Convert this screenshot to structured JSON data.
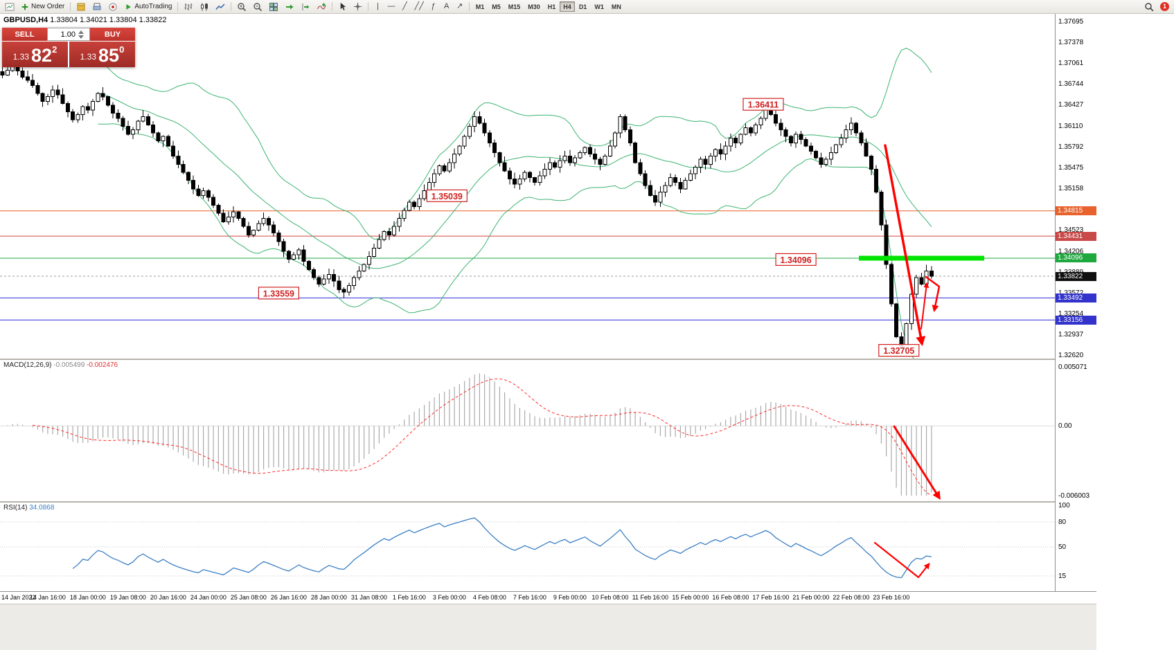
{
  "window": {
    "app_title": "GBPUSD,H4"
  },
  "toolbar": {
    "new_order_label": "New Order",
    "autotrading_label": "AutoTrading",
    "timeframes": [
      "M1",
      "M5",
      "M15",
      "M30",
      "H1",
      "H4",
      "D1",
      "W1",
      "MN"
    ],
    "active_timeframe": "H4",
    "notification_count": "1",
    "glyphs": {
      "vertical_line": "|",
      "horizontal_line": "―",
      "trendline": "╱",
      "channel": "╱╱",
      "fibonacci": "ƒ",
      "text_tool": "A",
      "arrows_tool": "↗"
    }
  },
  "trade_panel": {
    "sell_label": "SELL",
    "buy_label": "BUY",
    "volume": "1.00",
    "sell_price": {
      "prefix": "1.33",
      "big": "82",
      "sup": "2"
    },
    "buy_price": {
      "prefix": "1.33",
      "big": "85",
      "sup": "0"
    }
  },
  "chart": {
    "symbol_title": "GBPUSD,H4",
    "ohlc": "1.33804 1.34021 1.33804 1.33822"
  },
  "chart_data": {
    "type": "candlestick",
    "symbol": "GBPUSD",
    "timeframe": "H4",
    "price_axis": {
      "min": 1.3257,
      "max": 1.3781,
      "ticks": [
        "1.37695",
        "1.37378",
        "1.37061",
        "1.36744",
        "1.36427",
        "1.36110",
        "1.35792",
        "1.35475",
        "1.35158",
        "1.34841",
        "1.34523",
        "1.34206",
        "1.33889",
        "1.33572",
        "1.33254",
        "1.32937",
        "1.32620"
      ]
    },
    "closes": [
      1.3688,
      1.3695,
      1.3702,
      1.3694,
      1.3685,
      1.368,
      1.3672,
      1.366,
      1.3648,
      1.3655,
      1.3665,
      1.3658,
      1.3645,
      1.3632,
      1.362,
      1.3628,
      1.364,
      1.3635,
      1.3648,
      1.366,
      1.3655,
      1.3642,
      1.363,
      1.3622,
      1.361,
      1.3598,
      1.3605,
      1.3618,
      1.3625,
      1.3612,
      1.36,
      1.3588,
      1.3595,
      1.358,
      1.3565,
      1.3552,
      1.354,
      1.3528,
      1.3515,
      1.3505,
      1.3512,
      1.3502,
      1.349,
      1.3478,
      1.3465,
      1.3472,
      1.348,
      1.347,
      1.3458,
      1.3445,
      1.3452,
      1.3462,
      1.347,
      1.346,
      1.3448,
      1.3435,
      1.342,
      1.3408,
      1.3415,
      1.3422,
      1.3405,
      1.3392,
      1.338,
      1.337,
      1.3378,
      1.3385,
      1.3375,
      1.3362,
      1.3358,
      1.3368,
      1.338,
      1.339,
      1.34,
      1.3412,
      1.3425,
      1.3438,
      1.345,
      1.3445,
      1.3458,
      1.347,
      1.3482,
      1.3495,
      1.3488,
      1.35,
      1.3512,
      1.3525,
      1.3538,
      1.355,
      1.3542,
      1.3555,
      1.3568,
      1.358,
      1.3595,
      1.361,
      1.3625,
      1.3615,
      1.36,
      1.3585,
      1.357,
      1.3555,
      1.3542,
      1.353,
      1.3522,
      1.353,
      1.354,
      1.3532,
      1.3525,
      1.3535,
      1.3545,
      1.3555,
      1.3548,
      1.3558,
      1.3565,
      1.3555,
      1.3562,
      1.357,
      1.3578,
      1.3568,
      1.356,
      1.3552,
      1.3565,
      1.358,
      1.36,
      1.3625,
      1.3605,
      1.3585,
      1.3555,
      1.3538,
      1.352,
      1.3505,
      1.3495,
      1.351,
      1.352,
      1.3532,
      1.3525,
      1.3515,
      1.3528,
      1.3538,
      1.3548,
      1.356,
      1.3552,
      1.3565,
      1.3575,
      1.3568,
      1.358,
      1.3592,
      1.3585,
      1.3598,
      1.3608,
      1.36,
      1.3612,
      1.3622,
      1.3635,
      1.3628,
      1.3615,
      1.3605,
      1.3595,
      1.3585,
      1.3598,
      1.359,
      1.358,
      1.3572,
      1.3562,
      1.3552,
      1.356,
      1.357,
      1.3582,
      1.3592,
      1.3605,
      1.3615,
      1.36,
      1.3585,
      1.3565,
      1.3545,
      1.351,
      1.346,
      1.34,
      1.334,
      1.329,
      1.3273,
      1.331,
      1.3355,
      1.338,
      1.337,
      1.339,
      1.3382
    ],
    "bollinger": {
      "period": 20,
      "deviation": 2,
      "color": "#3cb371"
    },
    "hlines": [
      {
        "price": 1.34815,
        "label": "1.34815",
        "line_color": "#e8622d",
        "tag_color": "#e8622d"
      },
      {
        "price": 1.34431,
        "label": "1.34431",
        "line_color": "#d84040",
        "tag_color": "#c94848"
      },
      {
        "price": 1.34096,
        "label": "1.34096",
        "line_color": "#22aa44",
        "tag_color": "#1fa83e"
      },
      {
        "price": 1.33492,
        "label": "1.33492",
        "line_color": "#2828d8",
        "tag_color": "#3232cc"
      },
      {
        "price": 1.33156,
        "label": "1.33156",
        "line_color": "#2828d8",
        "tag_color": "#3232cc"
      }
    ],
    "current_price_tag": {
      "label": "1.33822",
      "price": 1.33822,
      "color": "#101010"
    },
    "highlight_segment": {
      "price": 1.34096,
      "bar_start": 171,
      "bar_end": 196,
      "color": "#00e400"
    },
    "price_labels": [
      {
        "text": "1.36411",
        "bar": 152,
        "price": 1.3643
      },
      {
        "text": "1.35039",
        "bar": 89,
        "price": 1.3504
      },
      {
        "text": "1.34096",
        "bar": 158.5,
        "price": 1.3407
      },
      {
        "text": "1.33559",
        "bar": 55.5,
        "price": 1.3356
      },
      {
        "text": "1.32705",
        "bar": 179,
        "price": 1.3269
      }
    ],
    "macd": {
      "label": "MACD(12,26,9)",
      "value1": "-0.005499",
      "value2": "-0.002476",
      "fast": 12,
      "slow": 26,
      "signal": 9,
      "scale_max": 0.005071,
      "scale_min": -0.006003,
      "scale_labels": [
        {
          "text": "0.005071",
          "value": 0.005071
        },
        {
          "text": "0.00",
          "value": 0
        },
        {
          "text": "-0.006003",
          "value": -0.006003
        }
      ],
      "histogram_color": "#aaaaaa",
      "signal_color": "#ff2a2a"
    },
    "rsi": {
      "label": "RSI(14)",
      "value": "34.0868",
      "period": 14,
      "color": "#3b7fc4",
      "scale_labels": [
        {
          "text": "100",
          "value": 100
        },
        {
          "text": "80",
          "value": 80
        },
        {
          "text": "50",
          "value": 50
        },
        {
          "text": "15",
          "value": 15
        }
      ],
      "dotted_levels": [
        80,
        50,
        15
      ]
    },
    "time_labels": [
      {
        "text": "14 Jan 2022",
        "bar": 1
      },
      {
        "text": "14 Jan 16:00",
        "bar": 9
      },
      {
        "text": "18 Jan 00:00",
        "bar": 17
      },
      {
        "text": "19 Jan 08:00",
        "bar": 25
      },
      {
        "text": "20 Jan 16:00",
        "bar": 33
      },
      {
        "text": "24 Jan 00:00",
        "bar": 41
      },
      {
        "text": "25 Jan 08:00",
        "bar": 49
      },
      {
        "text": "26 Jan 16:00",
        "bar": 57
      },
      {
        "text": "28 Jan 00:00",
        "bar": 65
      },
      {
        "text": "31 Jan 08:00",
        "bar": 73
      },
      {
        "text": "1 Feb 16:00",
        "bar": 81
      },
      {
        "text": "3 Feb 00:00",
        "bar": 89
      },
      {
        "text": "4 Feb 08:00",
        "bar": 97
      },
      {
        "text": "7 Feb 16:00",
        "bar": 105
      },
      {
        "text": "9 Feb 00:00",
        "bar": 113
      },
      {
        "text": "10 Feb 08:00",
        "bar": 121
      },
      {
        "text": "11 Feb 16:00",
        "bar": 129
      },
      {
        "text": "15 Feb 00:00",
        "bar": 137
      },
      {
        "text": "16 Feb 08:00",
        "bar": 145
      },
      {
        "text": "17 Feb 16:00",
        "bar": 153
      },
      {
        "text": "21 Feb 00:00",
        "bar": 161
      },
      {
        "text": "22 Feb 08:00",
        "bar": 169
      },
      {
        "text": "23 Feb 16:00",
        "bar": 177
      }
    ],
    "annotations": {
      "color": "#ff0000",
      "main_arrows": [
        {
          "points": [
            [
              1278,
              190
            ],
            [
              1305,
              335
            ],
            [
              1331,
              476
            ]
          ],
          "width": 3.5
        },
        {
          "points": [
            [
              1330,
              455
            ],
            [
              1338,
              390
            ]
          ],
          "width": 2
        },
        {
          "points": [
            [
              1337,
              380
            ],
            [
              1356,
              394
            ],
            [
              1349,
              428
            ]
          ],
          "width": 2.5
        }
      ],
      "macd_arrow": {
        "points": [
          [
            1291,
            96
          ],
          [
            1356,
            199
          ]
        ],
        "width": 3
      },
      "rsi_arrow": {
        "points": [
          [
            1263,
            58
          ],
          [
            1326,
            108
          ],
          [
            1341,
            89
          ]
        ],
        "width": 2.2
      }
    }
  }
}
